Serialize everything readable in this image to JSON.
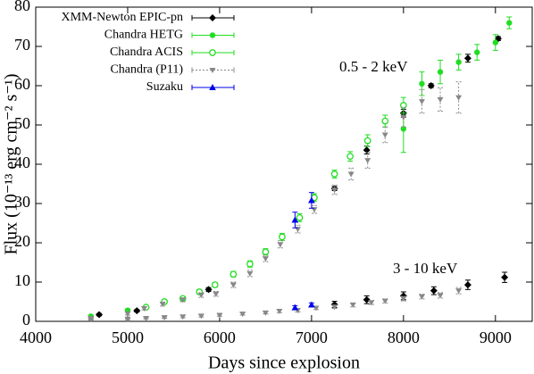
{
  "chart_data": {
    "type": "scatter",
    "x_label": "Days since explosion",
    "y_label": "Flux (10⁻¹³ erg cm⁻² s⁻¹)",
    "annotations": [
      "0.5 - 2 keV",
      "3 - 10 keV"
    ],
    "xlim": [
      4000,
      9400
    ],
    "xticks": [
      4000,
      5000,
      6000,
      7000,
      8000,
      9000
    ],
    "ylim": [
      0,
      80
    ],
    "yticks": [
      0,
      10,
      20,
      30,
      40,
      50,
      60,
      70,
      80
    ],
    "legend": "upper-left",
    "series": [
      {
        "name": "XMM-Newton EPIC-pn",
        "color": "#000000",
        "marker": "diamond",
        "x": [
          4690,
          5100,
          5880,
          7250,
          7600,
          8000,
          8300,
          8700,
          9030,
          7250,
          7600,
          8000,
          8330,
          8700,
          9100
        ],
        "values": [
          1.7,
          2.7,
          8.1,
          33.8,
          43.6,
          53,
          60,
          67,
          72,
          4.3,
          5.5,
          6.5,
          7.8,
          9.3,
          11.2
        ],
        "errors": [
          0.3,
          0.3,
          0.5,
          0.5,
          1,
          1,
          0.5,
          1,
          0.5,
          0.8,
          1,
          1,
          1,
          1.2,
          1.3
        ]
      },
      {
        "name": "Chandra HETG",
        "color": "#22dd22",
        "marker": "circle-filled",
        "x": [
          4600,
          5000,
          8000,
          8200,
          8400,
          8600,
          8800,
          9000,
          9150
        ],
        "values": [
          1.3,
          2.8,
          49,
          60.5,
          63.5,
          66,
          68.5,
          71,
          76
        ],
        "errors": [
          0.3,
          0.3,
          6,
          3,
          3,
          2,
          2,
          2,
          1.5
        ]
      },
      {
        "name": "Chandra ACIS",
        "color": "#22dd22",
        "marker": "circle-open",
        "x": [
          5200,
          5400,
          5600,
          5780,
          5950,
          6150,
          6330,
          6500,
          6680,
          6870,
          7030,
          7250,
          7420,
          7610,
          7800,
          8000
        ],
        "values": [
          3.6,
          5,
          5.8,
          7.5,
          9.3,
          12,
          14.6,
          17.7,
          21.5,
          26.4,
          31.5,
          37.5,
          42,
          46,
          51,
          55
        ],
        "errors": [
          0.4,
          0.5,
          0.5,
          0.6,
          0.6,
          0.7,
          0.8,
          0.8,
          0.9,
          1,
          1,
          1,
          1.2,
          1.5,
          1.5,
          2
        ]
      },
      {
        "name": "Chandra (P11)",
        "color": "#888888",
        "marker": "triangle-down",
        "x": [
          4600,
          5000,
          5180,
          5380,
          5600,
          5800,
          5960,
          6150,
          6330,
          6500,
          6660,
          6850,
          7030,
          7250,
          7430,
          7610,
          7800,
          8000,
          8200,
          8400,
          8600,
          4600,
          5000,
          5200,
          5400,
          5600,
          5800,
          6000,
          6250,
          6500,
          6650,
          6850,
          7050,
          7250,
          7450,
          7650,
          7800,
          8000,
          8200,
          8400,
          8600
        ],
        "values": [
          0.8,
          2,
          3.3,
          4.4,
          5.5,
          6.7,
          7,
          9.3,
          12.2,
          16,
          19.6,
          23.5,
          28.5,
          33.5,
          37.5,
          41,
          47.5,
          52,
          56,
          56.5,
          57,
          0.5,
          0.6,
          0.8,
          1,
          1.2,
          1.4,
          1.6,
          1.9,
          2.2,
          2.6,
          2.8,
          3.4,
          3.7,
          4.2,
          4.8,
          5.2,
          5.8,
          6.3,
          6.6,
          7.8
        ],
        "errors": [
          0.3,
          0.4,
          0.4,
          0.5,
          0.5,
          0.6,
          0.6,
          0.7,
          0.8,
          0.8,
          0.9,
          1,
          1,
          1.2,
          1.5,
          2,
          2,
          2.5,
          3,
          3,
          4,
          0.2,
          0.2,
          0.2,
          0.2,
          0.3,
          0.3,
          0.3,
          0.3,
          0.3,
          0.4,
          0.4,
          0.4,
          0.4,
          0.5,
          0.5,
          0.5,
          0.6,
          0.6,
          0.7,
          0.8
        ]
      },
      {
        "name": "Suzaku",
        "color": "#0000ee",
        "marker": "triangle-up",
        "x": [
          6820,
          7000,
          6820,
          7000
        ],
        "values": [
          25.8,
          30.8,
          3.5,
          4.2
        ],
        "errors": [
          2,
          2,
          0.5,
          0.5
        ]
      }
    ]
  }
}
